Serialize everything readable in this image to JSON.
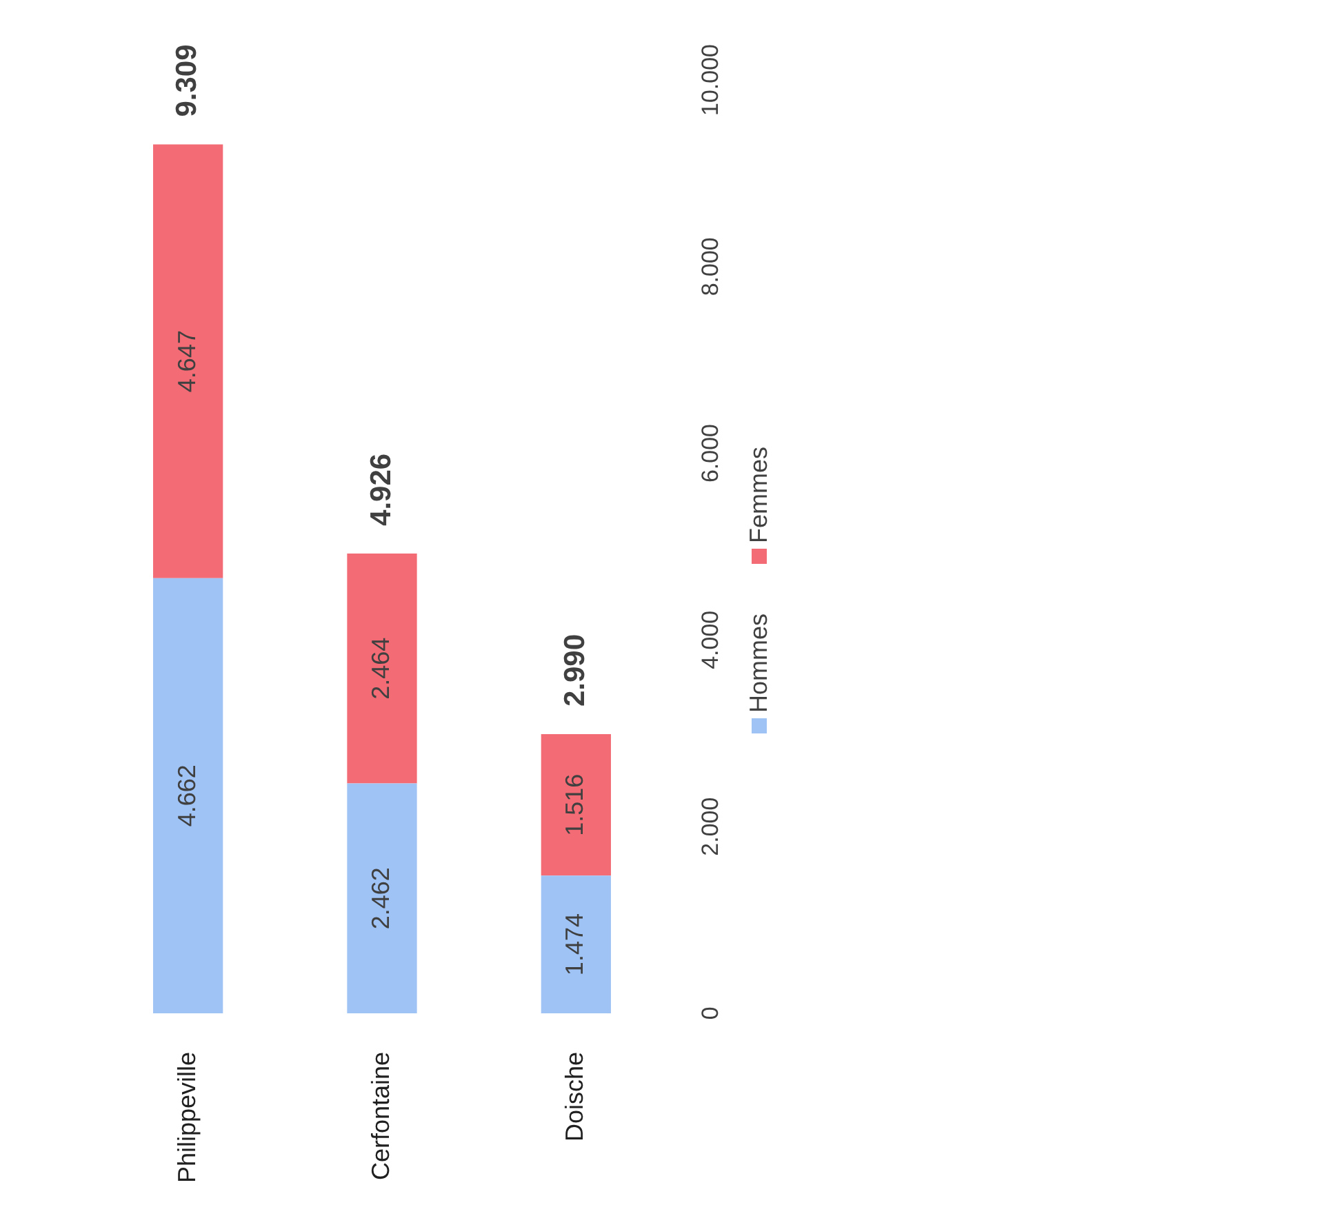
{
  "chart_data": {
    "type": "bar",
    "stacked": true,
    "categories": [
      "Philippeville",
      "Cerfontaine",
      "Doische"
    ],
    "series": [
      {
        "name": "Hommes",
        "color": "#9fc3f5",
        "values": [
          4662,
          2462,
          1474
        ],
        "value_labels": [
          "4.662",
          "2.462",
          "1.474"
        ]
      },
      {
        "name": "Femmes",
        "color": "#f26b75",
        "values": [
          4647,
          2464,
          1516
        ],
        "value_labels": [
          "4.647",
          "2.464",
          "1.516"
        ]
      }
    ],
    "totals": [
      "9.309",
      "4.926",
      "2.990"
    ],
    "ylim": [
      0,
      10000
    ],
    "yticks": [
      0,
      {
        "value": 2000,
        "label": "2.000"
      },
      {
        "value": 4000,
        "label": "4.000"
      },
      {
        "value": 6000,
        "label": "6.000"
      },
      {
        "value": 8000,
        "label": "8.000"
      },
      {
        "value": 10000,
        "label": "10.000"
      }
    ],
    "grid": false,
    "legend": "right"
  }
}
